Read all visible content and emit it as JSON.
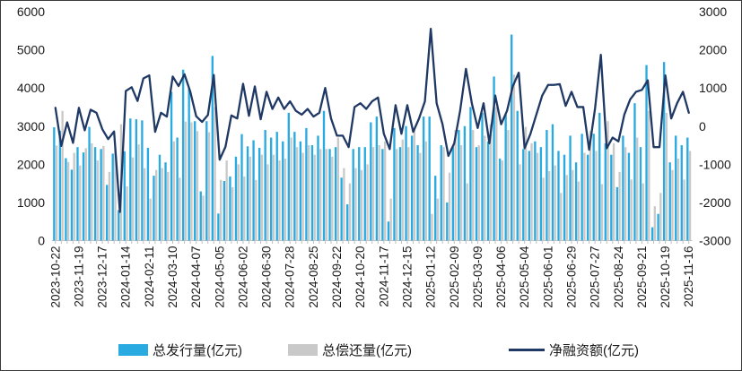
{
  "chart_data": {
    "type": "bar+line",
    "title": "",
    "label_every": 4,
    "x": [
      "2023-10-22",
      "2023-10-29",
      "2023-11-05",
      "2023-11-12",
      "2023-11-19",
      "2023-11-26",
      "2023-12-03",
      "2023-12-10",
      "2023-12-17",
      "2023-12-24",
      "2023-12-31",
      "2024-01-07",
      "2024-01-14",
      "2024-01-21",
      "2024-01-28",
      "2024-02-04",
      "2024-02-11",
      "2024-02-18",
      "2024-02-25",
      "2024-03-03",
      "2024-03-10",
      "2024-03-17",
      "2024-03-24",
      "2024-03-31",
      "2024-04-07",
      "2024-04-14",
      "2024-04-21",
      "2024-04-28",
      "2024-05-05",
      "2024-05-12",
      "2024-05-19",
      "2024-05-26",
      "2024-06-02",
      "2024-06-09",
      "2024-06-16",
      "2024-06-23",
      "2024-06-30",
      "2024-07-07",
      "2024-07-14",
      "2024-07-21",
      "2024-07-28",
      "2024-08-04",
      "2024-08-11",
      "2024-08-18",
      "2024-08-25",
      "2024-09-01",
      "2024-09-08",
      "2024-09-15",
      "2024-09-22",
      "2024-09-29",
      "2024-10-06",
      "2024-10-13",
      "2024-10-20",
      "2024-10-27",
      "2024-11-03",
      "2024-11-10",
      "2024-11-17",
      "2024-11-24",
      "2024-12-01",
      "2024-12-08",
      "2024-12-15",
      "2024-12-22",
      "2024-12-29",
      "2025-01-05",
      "2025-01-12",
      "2025-01-19",
      "2025-01-26",
      "2025-02-02",
      "2025-02-09",
      "2025-02-16",
      "2025-02-23",
      "2025-03-02",
      "2025-03-09",
      "2025-03-16",
      "2025-03-23",
      "2025-03-30",
      "2025-04-06",
      "2025-04-13",
      "2025-04-20",
      "2025-04-27",
      "2025-05-04",
      "2025-05-11",
      "2025-05-18",
      "2025-05-25",
      "2025-06-01",
      "2025-06-08",
      "2025-06-15",
      "2025-06-22",
      "2025-06-29",
      "2025-07-06",
      "2025-07-13",
      "2025-07-20",
      "2025-07-27",
      "2025-08-03",
      "2025-08-10",
      "2025-08-17",
      "2025-08-24",
      "2025-08-31",
      "2025-09-07",
      "2025-09-14",
      "2025-09-21",
      "2025-09-28",
      "2025-10-05",
      "2025-10-12",
      "2025-10-19",
      "2025-10-26",
      "2025-11-02",
      "2025-11-09",
      "2025-11-16"
    ],
    "x_tick_labels": [
      "2023-10-22",
      "2023-11-19",
      "2023-12-17",
      "2024-01-14",
      "2024-02-11",
      "2024-03-10",
      "2024-04-07",
      "2024-05-05",
      "2024-06-02",
      "2024-06-30",
      "2024-07-28",
      "2024-08-25",
      "2024-09-22",
      "2024-10-20",
      "2024-11-17",
      "2024-12-15",
      "2025-01-12",
      "2025-02-09",
      "2025-03-09",
      "2025-04-06",
      "2025-05-04",
      "2025-06-01",
      "2025-06-29",
      "2025-07-27",
      "2025-08-24",
      "2025-09-21",
      "2025-10-19",
      "2025-11-16"
    ],
    "series": [
      {
        "name": "总发行量(亿元)",
        "type": "bar",
        "axis": "left",
        "color": "#29ABE2",
        "values": [
          2970,
          2880,
          2160,
          1860,
          2450,
          2310,
          2980,
          2450,
          2400,
          1460,
          2280,
          800,
          2340,
          3200,
          3180,
          3150,
          2430,
          1700,
          2250,
          2050,
          3900,
          2700,
          4480,
          4000,
          3130,
          1290,
          3130,
          4840,
          710,
          1560,
          1680,
          2200,
          2790,
          2470,
          2630,
          2430,
          2900,
          2700,
          2850,
          2600,
          3350,
          2850,
          2600,
          2950,
          2500,
          2750,
          3400,
          2400,
          2450,
          1650,
          950,
          2400,
          2450,
          2450,
          3100,
          3250,
          2400,
          500,
          2950,
          2450,
          3000,
          2750,
          2500,
          3250,
          3250,
          1700,
          2500,
          1000,
          2450,
          2900,
          3000,
          3500,
          2450,
          3350,
          2600,
          4300,
          2150,
          3300,
          5400,
          3400,
          2400,
          2350,
          2600,
          2450,
          2900,
          3050,
          2350,
          2250,
          2750,
          2050,
          2800,
          2250,
          2800,
          3350,
          2550,
          2250,
          1400,
          2750,
          2300,
          3600,
          2450,
          4600,
          350,
          700,
          4680,
          2050,
          2750,
          2500,
          2700
        ]
      },
      {
        "name": "总偿还量(亿元)",
        "type": "bar",
        "axis": "left",
        "color": "#C9C9C9",
        "values": [
          2490,
          3400,
          2060,
          2300,
          1970,
          2420,
          2550,
          2100,
          2480,
          1800,
          2420,
          3050,
          1420,
          2180,
          2520,
          1900,
          1100,
          1850,
          1900,
          1800,
          2600,
          1650,
          3120,
          3100,
          2870,
          1180,
          2840,
          3500,
          1590,
          2100,
          1400,
          2000,
          1680,
          2200,
          1590,
          2250,
          2000,
          2250,
          2100,
          2150,
          2700,
          2450,
          2300,
          2500,
          2250,
          2400,
          2400,
          2200,
          2700,
          1900,
          1500,
          1900,
          1850,
          2000,
          2450,
          2500,
          2600,
          1100,
          2400,
          2650,
          2450,
          2900,
          2300,
          2600,
          700,
          1100,
          2450,
          1780,
          2900,
          2500,
          1500,
          2900,
          2500,
          2750,
          3050,
          3500,
          2100,
          2900,
          4350,
          2000,
          2980,
          2550,
          2300,
          1650,
          1820,
          1970,
          1250,
          1720,
          1850,
          1550,
          2300,
          2870,
          2350,
          1480,
          3130,
          2550,
          1800,
          2450,
          1600,
          2700,
          1500,
          3400,
          900,
          1250,
          3350,
          1850,
          2150,
          1600,
          2350
        ]
      },
      {
        "name": "净融资额(亿元)",
        "type": "line",
        "axis": "right",
        "color": "#1F3864",
        "values": [
          480,
          -520,
          100,
          -440,
          480,
          -110,
          430,
          350,
          -80,
          -340,
          -140,
          -2250,
          920,
          1020,
          660,
          1250,
          1330,
          -150,
          350,
          250,
          1300,
          1050,
          1360,
          900,
          260,
          110,
          290,
          1340,
          -880,
          -540,
          280,
          200,
          1110,
          270,
          1040,
          180,
          900,
          450,
          750,
          450,
          650,
          400,
          300,
          450,
          250,
          350,
          1000,
          200,
          -250,
          -250,
          -550,
          500,
          600,
          450,
          650,
          750,
          -200,
          -600,
          550,
          -200,
          550,
          -150,
          200,
          650,
          2550,
          600,
          50,
          -780,
          -450,
          400,
          1500,
          600,
          -50,
          600,
          -450,
          800,
          50,
          400,
          1050,
          1400,
          -580,
          -200,
          300,
          800,
          1080,
          1080,
          1100,
          530,
          900,
          500,
          500,
          -620,
          450,
          1870,
          -580,
          -300,
          -400,
          300,
          700,
          900,
          950,
          1200,
          -550,
          -550,
          1330,
          200,
          600,
          900,
          350
        ]
      }
    ],
    "left_axis": {
      "min": 0,
      "max": 6000,
      "ticks": [
        0,
        1000,
        2000,
        3000,
        4000,
        5000,
        6000
      ]
    },
    "right_axis": {
      "min": -3000,
      "max": 3000,
      "ticks": [
        -3000,
        -2000,
        -1000,
        0,
        1000,
        2000,
        3000
      ]
    },
    "grid": false,
    "legend_position": "bottom",
    "colors": {
      "axis_line": "#BFBFBF",
      "tick_text": "#1a1a1a",
      "background": "#FFFFFF"
    }
  },
  "legend": {
    "items": [
      "总发行量(亿元)",
      "总偿还量(亿元)",
      "净融资额(亿元)"
    ]
  }
}
